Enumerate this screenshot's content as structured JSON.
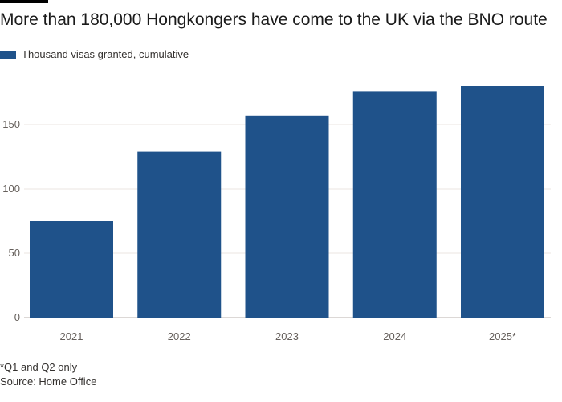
{
  "colors": {
    "bar": "#1f528a",
    "grid": "#ebe6e2",
    "axis": "#b8b2ad"
  },
  "chart_data": {
    "type": "bar",
    "title": "More than 180,000 Hongkongers have come to the UK via the BNO route",
    "legend": "Thousand visas granted, cumulative",
    "legend_position": "top-left",
    "categories": [
      "2021",
      "2022",
      "2023",
      "2024",
      "2025*"
    ],
    "series": [
      {
        "name": "Thousand visas granted, cumulative",
        "values": [
          75,
          129,
          157,
          176,
          180
        ]
      }
    ],
    "yticks": [
      0,
      50,
      100,
      150
    ],
    "ylim": [
      0,
      182
    ],
    "grid": true
  },
  "notes": {
    "footnote": "*Q1 and Q2 only",
    "source": "Source: Home Office"
  }
}
